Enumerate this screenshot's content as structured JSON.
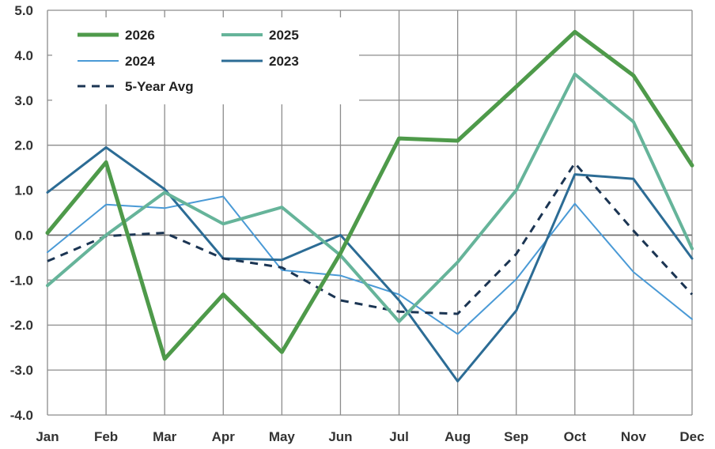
{
  "chart_data": {
    "type": "line",
    "categories": [
      "Jan",
      "Feb",
      "Mar",
      "Apr",
      "May",
      "Jun",
      "Jul",
      "Aug",
      "Sep",
      "Oct",
      "Nov",
      "Dec"
    ],
    "ylim": [
      -4.0,
      5.0
    ],
    "yticks": [
      "5.0",
      "4.0",
      "3.0",
      "2.0",
      "1.0",
      "0.0",
      "-1.0",
      "-2.0",
      "-3.0",
      "-4.0"
    ],
    "ytick_values": [
      5,
      4,
      3,
      2,
      1,
      0,
      -1,
      -2,
      -3,
      -4
    ],
    "grid": true,
    "legend_position": "top-left",
    "series": [
      {
        "name": "2026",
        "color": "#4e9a4a",
        "style": "thick",
        "values": [
          0.05,
          1.62,
          -2.75,
          -1.32,
          -2.6,
          -0.4,
          2.15,
          2.1,
          3.3,
          4.52,
          3.55,
          1.55
        ]
      },
      {
        "name": "2025",
        "color": "#66b49a",
        "style": "medium",
        "values": [
          -1.12,
          0.0,
          0.95,
          0.25,
          0.62,
          -0.45,
          -1.92,
          -0.6,
          1.0,
          3.58,
          2.52,
          -0.3
        ]
      },
      {
        "name": "2024",
        "color": "#4a9ad6",
        "style": "thin",
        "values": [
          -0.38,
          0.68,
          0.6,
          0.86,
          -0.78,
          -0.9,
          -1.32,
          -2.2,
          -0.98,
          0.7,
          -0.82,
          -1.87
        ]
      },
      {
        "name": "2023",
        "color": "#2c6c95",
        "style": "medium-thin",
        "values": [
          0.95,
          1.95,
          1.02,
          -0.52,
          -0.55,
          0.0,
          -1.45,
          -3.25,
          -1.68,
          1.35,
          1.25,
          -0.52
        ]
      },
      {
        "name": "5-Year Avg",
        "color": "#1b3553",
        "style": "dashed",
        "values": [
          -0.58,
          -0.02,
          0.05,
          -0.52,
          -0.72,
          -1.45,
          -1.7,
          -1.75,
          -0.42,
          1.6,
          0.1,
          -1.32
        ]
      }
    ]
  }
}
